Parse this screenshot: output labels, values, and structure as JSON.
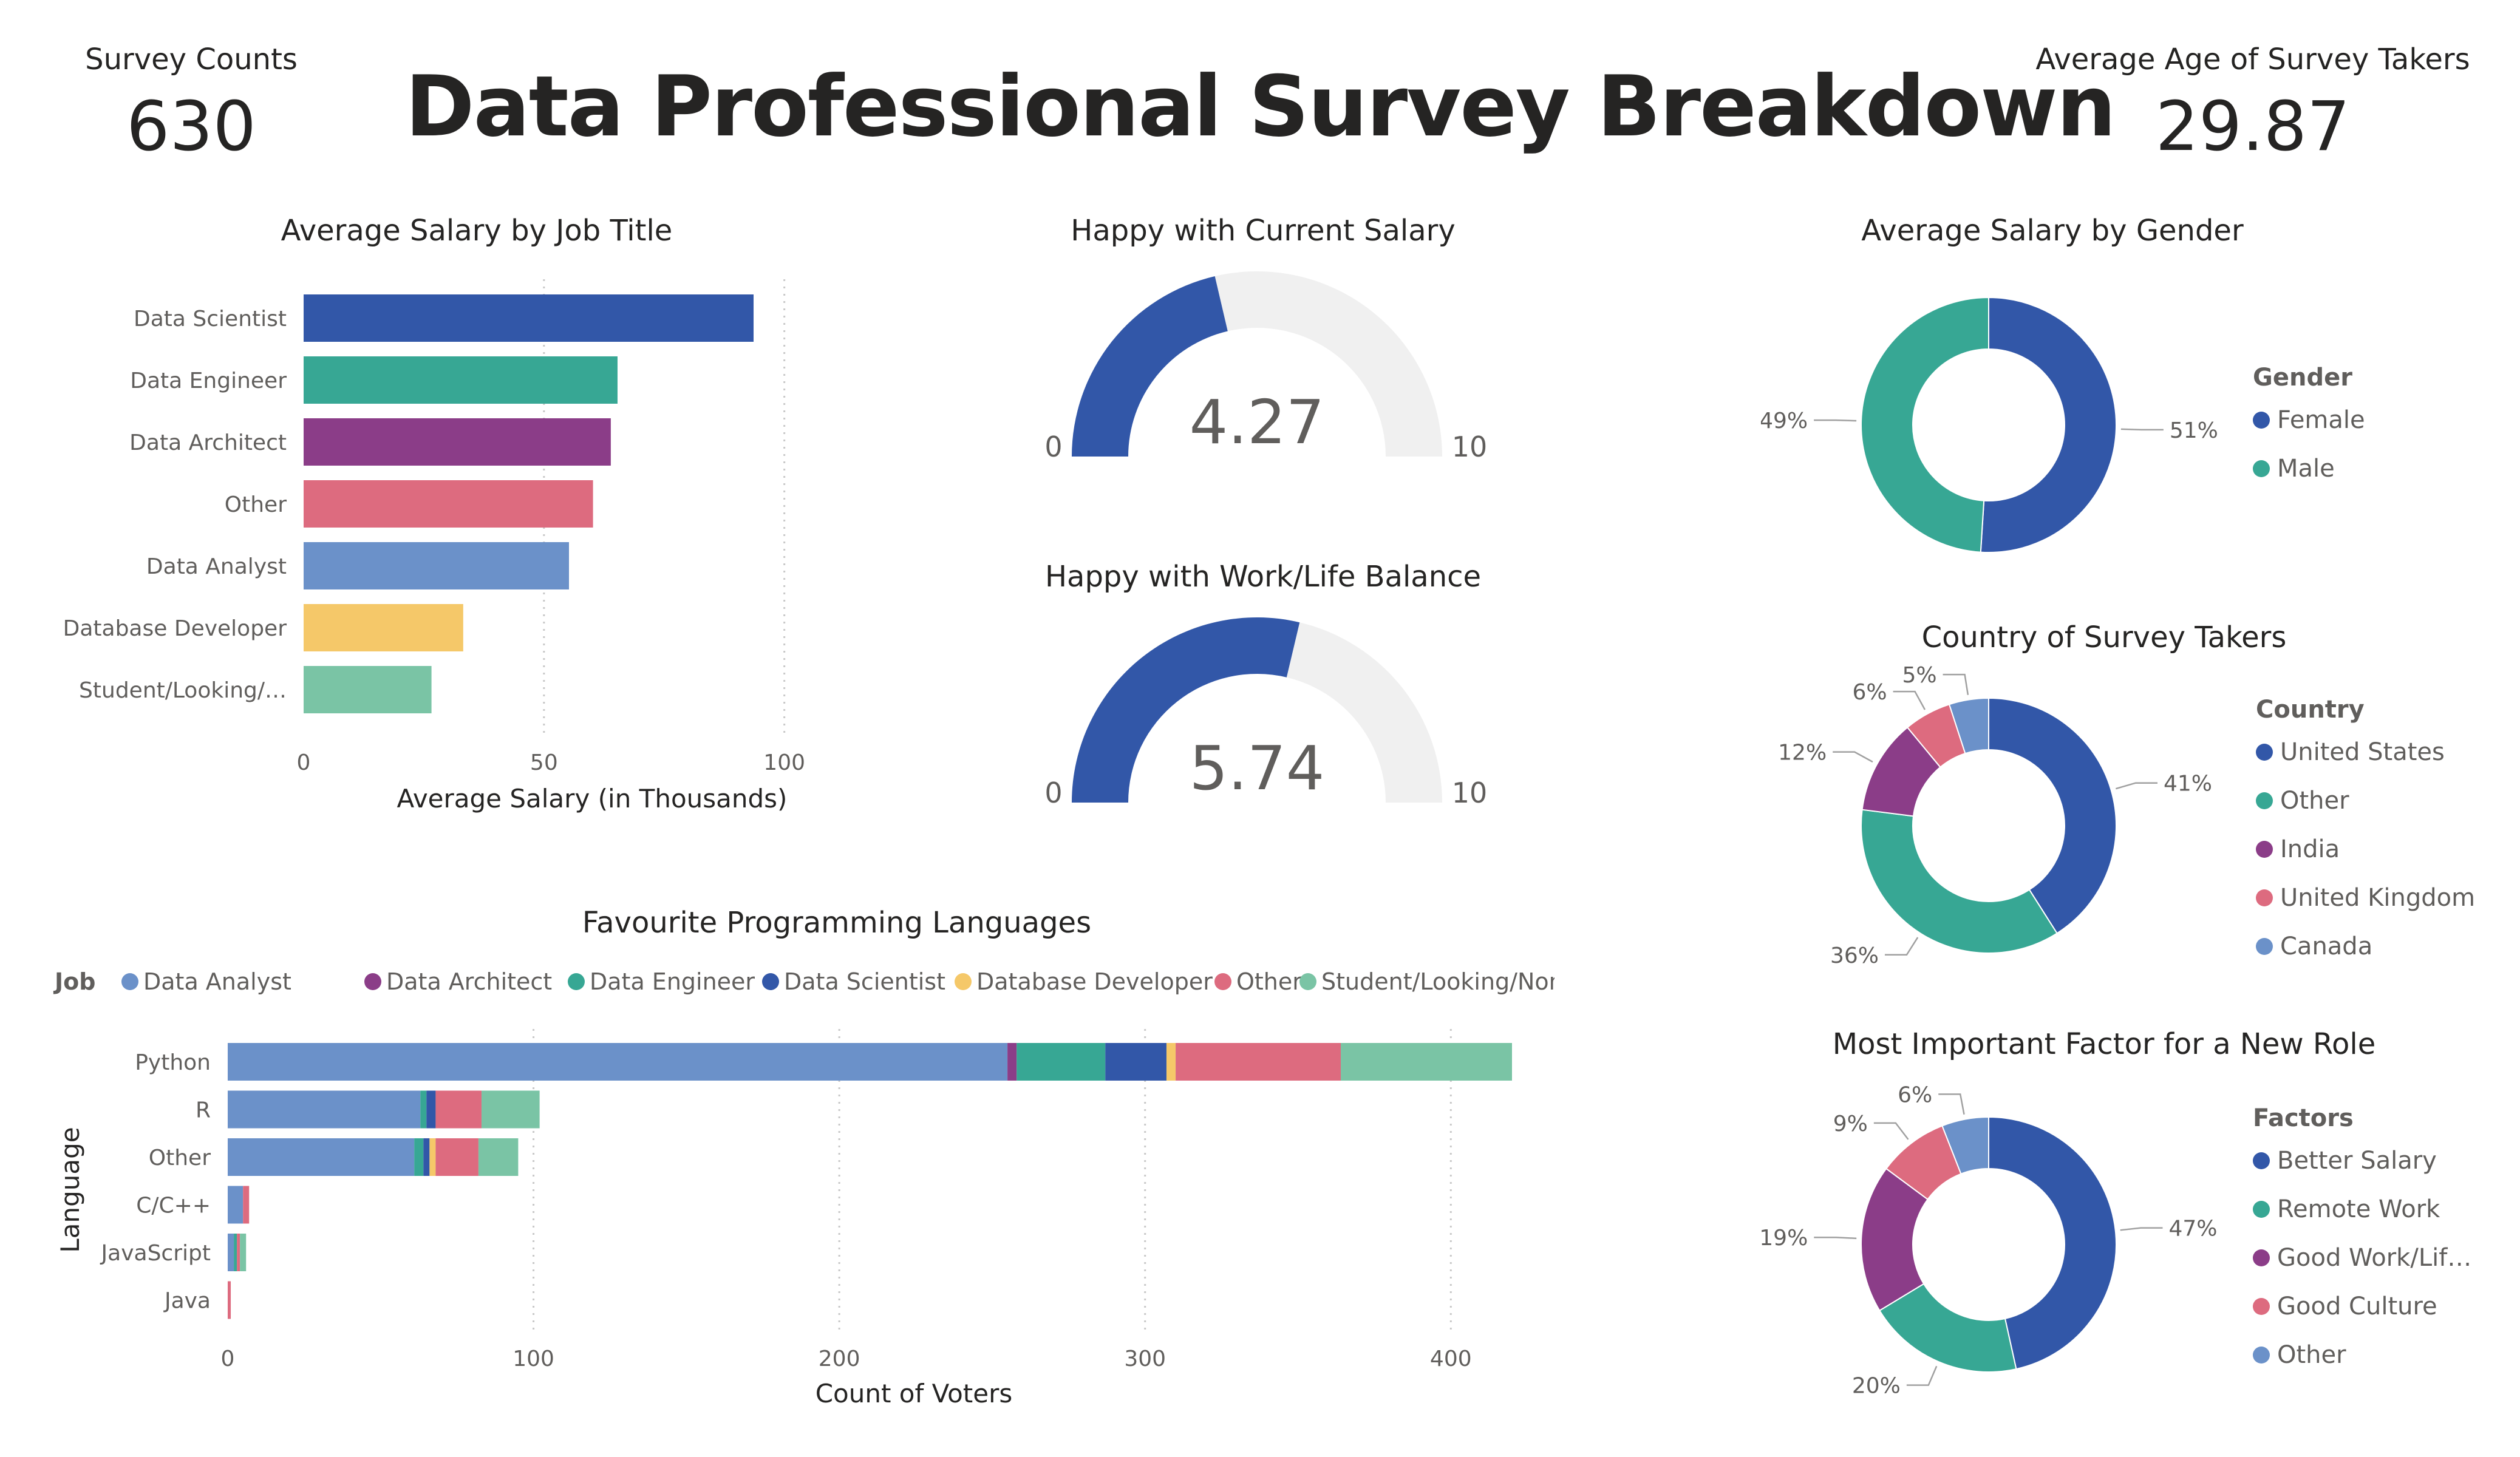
{
  "title": "Data Professional Survey Breakdown",
  "kpis": {
    "survey_counts": {
      "label": "Survey Counts",
      "value": "630"
    },
    "average_age": {
      "label": "Average Age of Survey Takers",
      "value": "29.87"
    }
  },
  "colors": {
    "dark_blue": "#3257A8",
    "teal": "#37A794",
    "purple": "#8B3D88",
    "pink": "#DD6B7F",
    "light_blue": "#6B91C9",
    "yellow": "#F5C869",
    "mint": "#7AC4A5",
    "gauge_track": "#F0F0F0"
  },
  "chart_data": [
    {
      "id": "salary_by_job",
      "type": "bar",
      "orientation": "horizontal",
      "title": "Average Salary by Job Title",
      "xlabel": "Average Salary (in Thousands)",
      "categories": [
        "Data Scientist",
        "Data Engineer",
        "Data Architect",
        "Other",
        "Data Analyst",
        "Database Developer",
        "Student/Looking/…"
      ],
      "values": [
        93.6,
        65.3,
        63.9,
        60.2,
        55.2,
        33.2,
        26.6
      ],
      "bar_colors": [
        "#3257A8",
        "#37A794",
        "#8B3D88",
        "#DD6B7F",
        "#6B91C9",
        "#F5C869",
        "#7AC4A5"
      ],
      "xlim": [
        0,
        120
      ],
      "xticks": [
        0,
        50,
        100
      ],
      "grid": true
    },
    {
      "id": "happy_salary",
      "type": "gauge",
      "title": "Happy with Current Salary",
      "value": 4.27,
      "value_label": "4.27",
      "min": 0,
      "max": 10,
      "min_label": "0",
      "max_label": "10"
    },
    {
      "id": "happy_worklife",
      "type": "gauge",
      "title": "Happy with Work/Life Balance",
      "value": 5.74,
      "value_label": "5.74",
      "min": 0,
      "max": 10,
      "min_label": "0",
      "max_label": "10"
    },
    {
      "id": "salary_by_gender",
      "type": "pie",
      "donut": true,
      "title": "Average Salary by Gender",
      "legend_title": "Gender",
      "legend_position": "right",
      "labels": [
        "Female",
        "Male"
      ],
      "values": [
        51,
        49
      ],
      "percent_labels": [
        "51%",
        "49%"
      ],
      "slice_colors": [
        "#3257A8",
        "#37A794"
      ]
    },
    {
      "id": "country",
      "type": "pie",
      "donut": true,
      "title": "Country of Survey Takers",
      "legend_title": "Country",
      "legend_position": "right",
      "labels": [
        "United States",
        "Other",
        "India",
        "United Kingdom",
        "Canada"
      ],
      "values": [
        41,
        36,
        12,
        6,
        5
      ],
      "percent_labels": [
        "41%",
        "36%",
        "12%",
        "6%",
        "5%"
      ],
      "slice_colors": [
        "#3257A8",
        "#37A794",
        "#8B3D88",
        "#DD6B7F",
        "#6B91C9"
      ]
    },
    {
      "id": "important_factor",
      "type": "pie",
      "donut": true,
      "title": "Most Important Factor for a New Role",
      "legend_title": "Factors",
      "legend_position": "right",
      "labels": [
        "Better Salary",
        "Remote Work",
        "Good Work/Lif…",
        "Good Culture",
        "Other"
      ],
      "values": [
        47,
        20,
        19,
        9,
        6
      ],
      "percent_labels": [
        "47%",
        "20%",
        "19%",
        "9%",
        "6%"
      ],
      "slice_colors": [
        "#3257A8",
        "#37A794",
        "#8B3D88",
        "#DD6B7F",
        "#6B91C9"
      ]
    },
    {
      "id": "languages",
      "type": "bar",
      "orientation": "horizontal",
      "stacked": true,
      "title": "Favourite Programming Languages",
      "legend_title": "Job",
      "legend_position": "top",
      "xlabel": "Count of Voters",
      "ylabel": "Language",
      "categories": [
        "Python",
        "R",
        "Other",
        "C/C++",
        "JavaScript",
        "Java"
      ],
      "xlim": [
        0,
        420
      ],
      "xticks": [
        0,
        100,
        200,
        300,
        400
      ],
      "grid": true,
      "series": [
        {
          "name": "Data Analyst",
          "color": "#6B91C9",
          "values": [
            255,
            63,
            61,
            5,
            2,
            0
          ]
        },
        {
          "name": "Data Architect",
          "color": "#8B3D88",
          "values": [
            3,
            0,
            0,
            0,
            0,
            0
          ]
        },
        {
          "name": "Data Engineer",
          "color": "#37A794",
          "values": [
            29,
            2,
            3,
            0,
            1,
            0
          ]
        },
        {
          "name": "Data Scientist",
          "color": "#3257A8",
          "values": [
            20,
            3,
            2,
            0,
            0,
            0
          ]
        },
        {
          "name": "Database Developer",
          "color": "#F5C869",
          "values": [
            3,
            0,
            2,
            0,
            0,
            0
          ]
        },
        {
          "name": "Other",
          "color": "#DD6B7F",
          "values": [
            54,
            15,
            14,
            2,
            1,
            1
          ]
        },
        {
          "name": "Student/Looking/None",
          "color": "#7AC4A5",
          "values": [
            56,
            19,
            13,
            0,
            2,
            0
          ]
        }
      ]
    }
  ]
}
